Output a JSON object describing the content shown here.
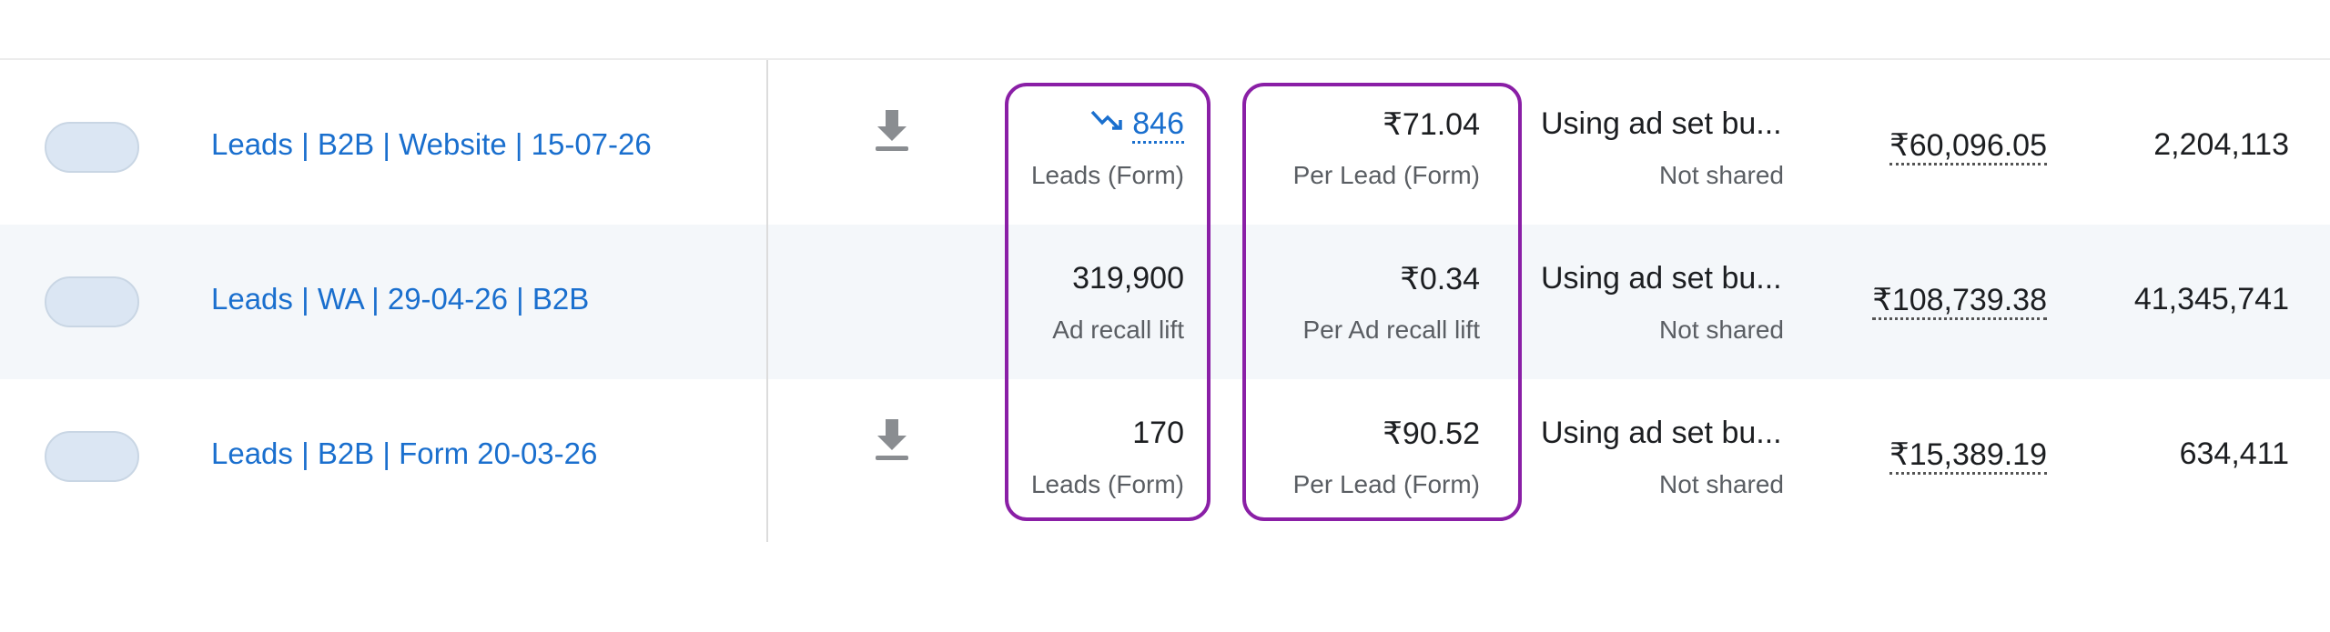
{
  "rows": [
    {
      "name": "Leads | B2B | Website | 15-07-26",
      "result": "846",
      "result_label": "Leads (Form)",
      "cost": "₹71.04",
      "cost_label": "Per Lead (Form)",
      "budget": "Using ad set bu...",
      "budget_status": "Not shared",
      "amount_spent": "₹60,096.05",
      "impressions": "2,204,113"
    },
    {
      "name": "Leads | WA | 29-04-26 | B2B",
      "result": "319,900",
      "result_label": "Ad recall lift",
      "cost": "₹0.34",
      "cost_label": "Per Ad recall lift",
      "budget": "Using ad set bu...",
      "budget_status": "Not shared",
      "amount_spent": "₹108,739.38",
      "impressions": "41,345,741"
    },
    {
      "name": "Leads | B2B | Form 20-03-26",
      "result": "170",
      "result_label": "Leads (Form)",
      "cost": "₹90.52",
      "cost_label": "Per Lead (Form)",
      "budget": "Using ad set bu...",
      "budget_status": "Not shared",
      "amount_spent": "₹15,389.19",
      "impressions": "634,411"
    }
  ]
}
